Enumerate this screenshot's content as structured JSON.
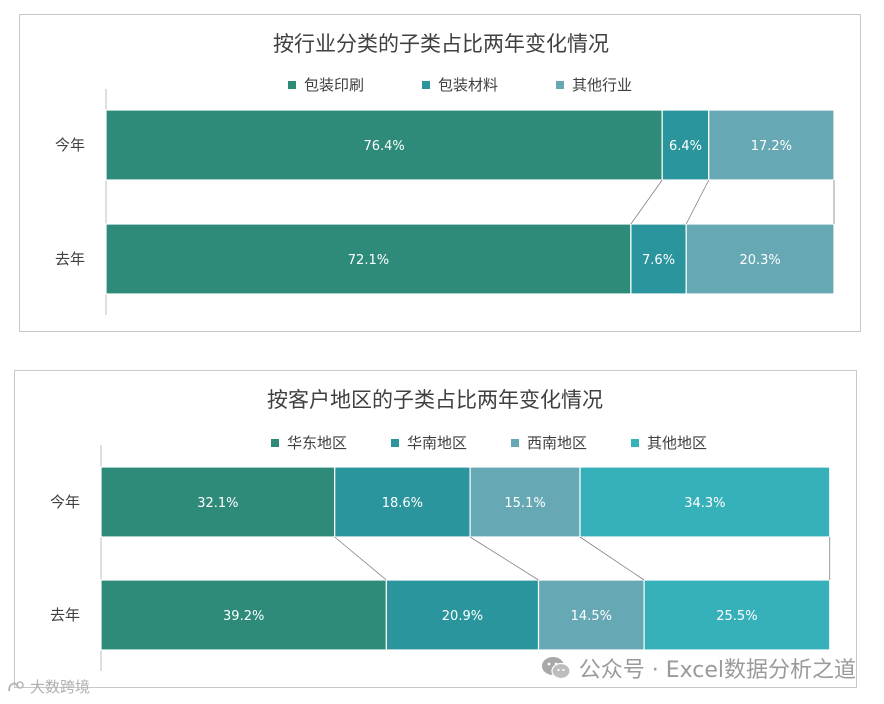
{
  "colors": {
    "seg1": "#2E8B7A",
    "seg2": "#2A959D",
    "seg3": "#66A8B3",
    "seg4": "#36B1B9",
    "connector": "#808080"
  },
  "watermark": {
    "icon": "wechat-icon",
    "text": "公众号 · Excel数据分析之道"
  },
  "corner_mark": {
    "icon": "logo-icon",
    "text": "大数跨境"
  },
  "chart_data": [
    {
      "type": "bar",
      "orientation": "horizontal",
      "stacked": "percent",
      "title": "按行业分类的子类占比两年变化情况",
      "categories": [
        "今年",
        "去年"
      ],
      "series": [
        {
          "name": "包装印刷",
          "values": [
            76.4,
            72.1
          ],
          "labels": [
            "76.4%",
            "72.1%"
          ]
        },
        {
          "name": "包装材料",
          "values": [
            6.4,
            7.6
          ],
          "labels": [
            "6.4%",
            "7.6%"
          ]
        },
        {
          "name": "其他行业",
          "values": [
            17.2,
            20.3
          ],
          "labels": [
            "17.2%",
            "20.3%"
          ]
        }
      ],
      "legend_position": "top",
      "series_lines": true
    },
    {
      "type": "bar",
      "orientation": "horizontal",
      "stacked": "percent",
      "title": "按客户地区的子类占比两年变化情况",
      "categories": [
        "今年",
        "去年"
      ],
      "series": [
        {
          "name": "华东地区",
          "values": [
            32.1,
            39.2
          ],
          "labels": [
            "32.1%",
            "39.2%"
          ]
        },
        {
          "name": "华南地区",
          "values": [
            18.6,
            20.9
          ],
          "labels": [
            "18.6%",
            "20.9%"
          ]
        },
        {
          "name": "西南地区",
          "values": [
            15.1,
            14.5
          ],
          "labels": [
            "15.1%",
            "14.5%"
          ]
        },
        {
          "name": "其他地区",
          "values": [
            34.3,
            25.5
          ],
          "labels": [
            "34.3%",
            "25.5%"
          ]
        }
      ],
      "legend_position": "top",
      "series_lines": true
    }
  ]
}
